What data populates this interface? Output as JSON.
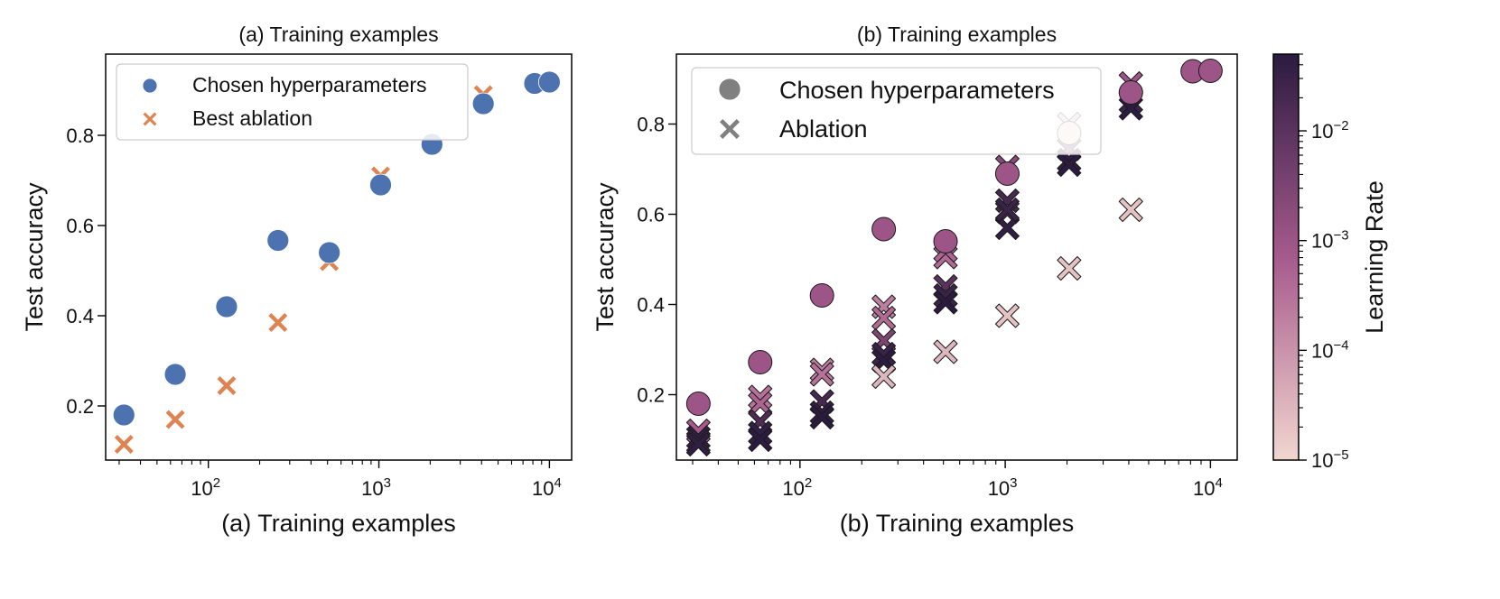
{
  "colors": {
    "chosen_a": "#4c72b0",
    "ablation_a": "#dd8452",
    "legend_gray": "#808080",
    "lr_low": "#f1d6cf",
    "lr_mid": "#a65a8c",
    "lr_high": "#2b1b3f"
  },
  "chart_data": [
    {
      "type": "scatter",
      "title": "(a) Training examples",
      "xlabel": "(a) Training examples",
      "ylabel": "Test accuracy",
      "xscale": "log",
      "xlim": [
        25,
        13500
      ],
      "ylim": [
        0.08,
        0.98
      ],
      "x_ticks": [
        100,
        1000,
        10000
      ],
      "x_tick_labels": [
        {
          "base": "10",
          "exp": "2"
        },
        {
          "base": "10",
          "exp": "3"
        },
        {
          "base": "10",
          "exp": "4"
        }
      ],
      "y_ticks": [
        0.2,
        0.4,
        0.6,
        0.8
      ],
      "y_tick_labels": [
        "0.2",
        "0.4",
        "0.6",
        "0.8"
      ],
      "legend": {
        "placement": "upper-left",
        "entries": [
          {
            "label": "Chosen hyperparameters",
            "marker": "circle"
          },
          {
            "label": "Best ablation",
            "marker": "x"
          }
        ]
      },
      "series": [
        {
          "name": "Chosen hyperparameters",
          "marker": "circle",
          "x": [
            32,
            64,
            128,
            256,
            512,
            1024,
            2048,
            4096,
            8192,
            10000
          ],
          "y": [
            0.18,
            0.27,
            0.42,
            0.567,
            0.54,
            0.69,
            0.78,
            0.87,
            0.915,
            0.918
          ]
        },
        {
          "name": "Best ablation",
          "marker": "x",
          "x": [
            32,
            64,
            128,
            256,
            512,
            1024,
            4096
          ],
          "y": [
            0.115,
            0.17,
            0.245,
            0.385,
            0.52,
            0.71,
            0.89
          ]
        }
      ]
    },
    {
      "type": "scatter",
      "title": "(b) Training examples",
      "xlabel": "(b) Training examples",
      "ylabel": "Test accuracy",
      "xscale": "log",
      "xlim": [
        25,
        13500
      ],
      "ylim": [
        0.055,
        0.955
      ],
      "x_ticks": [
        100,
        1000,
        10000
      ],
      "x_tick_labels": [
        {
          "base": "10",
          "exp": "2"
        },
        {
          "base": "10",
          "exp": "3"
        },
        {
          "base": "10",
          "exp": "4"
        }
      ],
      "y_ticks": [
        0.2,
        0.4,
        0.6,
        0.8
      ],
      "y_tick_labels": [
        "0.2",
        "0.4",
        "0.6",
        "0.8"
      ],
      "legend": {
        "placement": "upper-left",
        "entries": [
          {
            "label": "Chosen hyperparameters",
            "marker": "circle"
          },
          {
            "label": "Ablation",
            "marker": "x"
          }
        ]
      },
      "colorbar": {
        "label": "Learning Rate",
        "scale": "log",
        "range": [
          1e-05,
          0.05
        ],
        "ticks": [
          {
            "value": 1e-05,
            "base": "10",
            "exp": "−5"
          },
          {
            "value": 0.0001,
            "base": "10",
            "exp": "−4"
          },
          {
            "value": 0.001,
            "base": "10",
            "exp": "−3"
          },
          {
            "value": 0.01,
            "base": "10",
            "exp": "−2"
          }
        ]
      },
      "series": [
        {
          "name": "Chosen hyperparameters",
          "marker": "circle",
          "x": [
            32,
            64,
            128,
            256,
            512,
            1024,
            2048,
            4096,
            8192,
            10000
          ],
          "y": [
            0.18,
            0.272,
            0.42,
            0.567,
            0.54,
            0.69,
            0.78,
            0.87,
            0.917,
            0.918
          ],
          "lr": [
            0.001,
            0.001,
            0.001,
            0.001,
            0.001,
            0.001,
            1e-05,
            0.001,
            0.001,
            0.001
          ]
        },
        {
          "name": "Ablation",
          "marker": "x",
          "x": [
            32,
            32,
            32,
            32,
            64,
            64,
            64,
            64,
            64,
            128,
            128,
            128,
            128,
            128,
            256,
            256,
            256,
            256,
            256,
            256,
            512,
            512,
            512,
            512,
            512,
            512,
            1024,
            1024,
            1024,
            1024,
            1024,
            1024,
            2048,
            2048,
            2048,
            2048,
            2048,
            4096,
            4096,
            4096,
            4096
          ],
          "y": [
            0.12,
            0.105,
            0.095,
            0.09,
            0.195,
            0.18,
            0.14,
            0.115,
            0.1,
            0.255,
            0.245,
            0.185,
            0.16,
            0.15,
            0.395,
            0.37,
            0.32,
            0.29,
            0.275,
            0.24,
            0.505,
            0.44,
            0.42,
            0.405,
            0.295,
            0.52,
            0.705,
            0.63,
            0.605,
            0.57,
            0.375,
            0.61,
            0.8,
            0.745,
            0.72,
            0.71,
            0.48,
            0.89,
            0.85,
            0.835,
            0.61
          ],
          "lr": [
            0.0007,
            0.04,
            0.02,
            0.04,
            0.0003,
            0.0005,
            0.015,
            0.04,
            0.05,
            0.0002,
            0.0003,
            0.02,
            0.04,
            0.05,
            0.0002,
            0.0004,
            0.003,
            0.03,
            0.05,
            3e-05,
            0.0004,
            0.01,
            0.03,
            0.05,
            3e-05,
            0.0005,
            0.002,
            0.02,
            0.01,
            0.04,
            2e-05,
            0.03,
            2e-05,
            0.002,
            0.04,
            0.05,
            2e-05,
            0.001,
            0.03,
            0.05,
            2e-05
          ]
        }
      ]
    }
  ]
}
